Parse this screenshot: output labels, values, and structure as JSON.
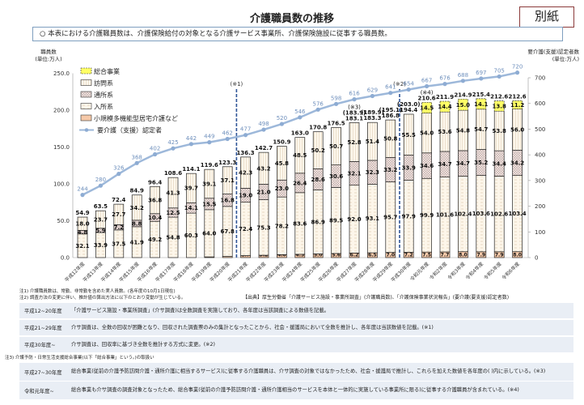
{
  "header": {
    "title": "介護職員数の推移",
    "stamp": "別紙",
    "description": "○ 本表における介護職員数は、介護保険給付の対象となる介護サービス事業所、介護保険施設に従事する職員数。"
  },
  "chart_data": {
    "type": "bar",
    "stacked": true,
    "ylabel": "職員数",
    "ylabel_unit": "(単位:万人)",
    "y2label": "要介護(支援)認定者数",
    "y2label_unit": "(単位:万人)",
    "ylim": [
      0,
      250
    ],
    "y2lim": [
      0,
      700
    ],
    "yticks": [
      "0.0",
      "50.0",
      "100.0",
      "150.0",
      "200.0",
      "250.0"
    ],
    "y2ticks": [
      "0",
      "100",
      "200",
      "300",
      "400",
      "500",
      "600",
      "700"
    ],
    "categories": [
      "平成12年度",
      "平成13年度",
      "平成14年度",
      "平成15年度",
      "平成16年度",
      "平成17年度",
      "平成18年度",
      "平成19年度",
      "平成20年度",
      "平成21年度",
      "平成22年度",
      "平成23年度",
      "平成24年度",
      "平成25年度",
      "平成26年度",
      "平成27年度",
      "平成28年度",
      "平成29年度",
      "平成30年度",
      "令和元年度",
      "令和2年度",
      "令和3年度",
      "令和4年度",
      "令和5年度",
      "令和6年度"
    ],
    "series": [
      {
        "name": "小規模多機能型居宅介護など",
        "color": "#f6c9a9",
        "values": [
          null,
          null,
          null,
          null,
          null,
          null,
          null,
          1.0,
          1.6,
          2.7,
          3.2,
          4.0,
          4.5,
          5.0,
          5.6,
          6.2,
          6.5,
          7.0,
          7.2,
          7.5,
          7.7,
          8.0,
          7.9,
          7.9,
          8.0
        ]
      },
      {
        "name": "入所系",
        "color": "#fdf6ea",
        "values": [
          32.1,
          33.9,
          37.5,
          41.9,
          49.2,
          54.8,
          60.3,
          64.0,
          67.8,
          72.4,
          75.3,
          78.2,
          83.6,
          86.9,
          89.5,
          92.0,
          93.1,
          95.7,
          97.9,
          99.9,
          101.6,
          102.4,
          103.6,
          102.6,
          103.4
        ]
      },
      {
        "name": "通所系",
        "color": "#e6d9d6",
        "values": [
          4.8,
          5.9,
          7.2,
          8.8,
          10.4,
          12.5,
          14.1,
          15.5,
          16.8,
          19.0,
          21.0,
          23.0,
          26.4,
          28.6,
          30.6,
          32.1,
          32.3,
          33.2,
          33.9,
          34.6,
          34.7,
          34.7,
          35.2,
          34.4,
          34.2
        ]
      },
      {
        "name": "訪問系",
        "color": "#fdf7ec",
        "values": [
          18.0,
          23.7,
          27.7,
          34.2,
          36.8,
          41.3,
          39.7,
          39.1,
          37.1,
          42.3,
          43.2,
          45.8,
          48.5,
          50.2,
          50.7,
          52.8,
          51.4,
          50.8,
          55.5,
          54.0,
          53.6,
          54.8,
          54.7,
          53.8,
          56.0
        ]
      },
      {
        "name": "総合事業",
        "color": "#ffff66",
        "values": [
          null,
          null,
          null,
          null,
          null,
          null,
          null,
          null,
          null,
          null,
          null,
          null,
          null,
          null,
          null,
          null,
          null,
          null,
          null,
          14.5,
          14.4,
          15.0,
          14.1,
          13.8,
          11.2
        ]
      }
    ],
    "totals": [
      "54.9",
      "63.5",
      "72.4",
      "84.9",
      "96.4",
      "108.6",
      "114.1",
      "119.6",
      "123.3",
      "136.3",
      "142.7",
      "150.9",
      "163.0",
      "170.8",
      "176.5",
      "183.1",
      "183.3",
      "186.8",
      "194.4",
      "210.6",
      "211.9",
      "214.9",
      "215.4",
      "212.6",
      "212.6"
    ],
    "totals_with_sogo": [
      null,
      null,
      null,
      null,
      null,
      null,
      null,
      null,
      null,
      null,
      null,
      null,
      null,
      null,
      null,
      "(183.9)",
      "(189.9)",
      "(195.1)",
      "(203.0)",
      null,
      null,
      null,
      null,
      null,
      null
    ],
    "line": {
      "name": "要介護（支援）認定者",
      "color": "#9db8da",
      "axis": "right",
      "values": [
        244,
        280,
        326,
        368,
        402,
        425,
        442,
        449,
        462,
        477,
        498,
        520,
        546,
        576,
        598,
        616,
        629,
        641,
        654,
        667,
        676,
        688,
        697,
        705,
        720
      ]
    },
    "markers": [
      {
        "label": "(※1)",
        "between": [
          "平成20年度",
          "平成21年度"
        ]
      },
      {
        "label": "(※2)",
        "between": [
          "平成29年度",
          "平成30年度"
        ]
      }
    ],
    "annotations": [
      {
        "label": "(※3)",
        "category": "平成27年度"
      },
      {
        "label": "(※4)",
        "category": "令和元年度"
      }
    ],
    "legend": "top-left"
  },
  "notes": {
    "n1": "注1) 介護職員数は、常勤、非常勤を含めた実人員数。(各年度の10月1日現在)",
    "n2": "注2) 調査方法の変更に伴い、推計値の算出方法に以下のとおり変動が生じている。",
    "source": "【出典】厚生労働省「介護サービス施設・事業所調査」(介護職員数)、「介護保険事業状況報告」(要介護(要支援)認定者数)",
    "rows2": [
      {
        "k": "平成12~20年度",
        "v": "「介護サービス施設・事業所調査」(介サ調査)は全数調査を実施しており、各年度は当該調査による数値を記載。"
      },
      {
        "k": "平成21~29年度",
        "v": "介サ調査は、全数の回収が困難となり、回収された調査票のみの集計となったことから、社会・援護局において全数を推計し、各年度は当該数値を記載。(※1)"
      },
      {
        "k": "平成30年度~",
        "v": "介サ調査は、回収率に基づき全数を推計する方式に変更。(※2)"
      }
    ],
    "n3": "注3) 介護予防・日常生活支援総合事業(以下「総合事業」という。)の取扱い",
    "rows3": [
      {
        "k": "平成27~30年度",
        "v": "総合事業(従前の介護予防訪問介護・通所介護に相当するサービス)に従事する介護職員は、介サ調査の対象ではなかったため、社会・援護局で推計し、これらを加えた数値を各年度の( )内に示している。(※3)"
      },
      {
        "k": "令和元年度~",
        "v": "総合事業も介サ調査の調査対象となったため、総合事業(従前の介護予防訪問介護・通所介護相当のサービスを本体と一体的に実施している事業所に限る)に従事する介護職員が含まれている。(※4)"
      }
    ]
  }
}
